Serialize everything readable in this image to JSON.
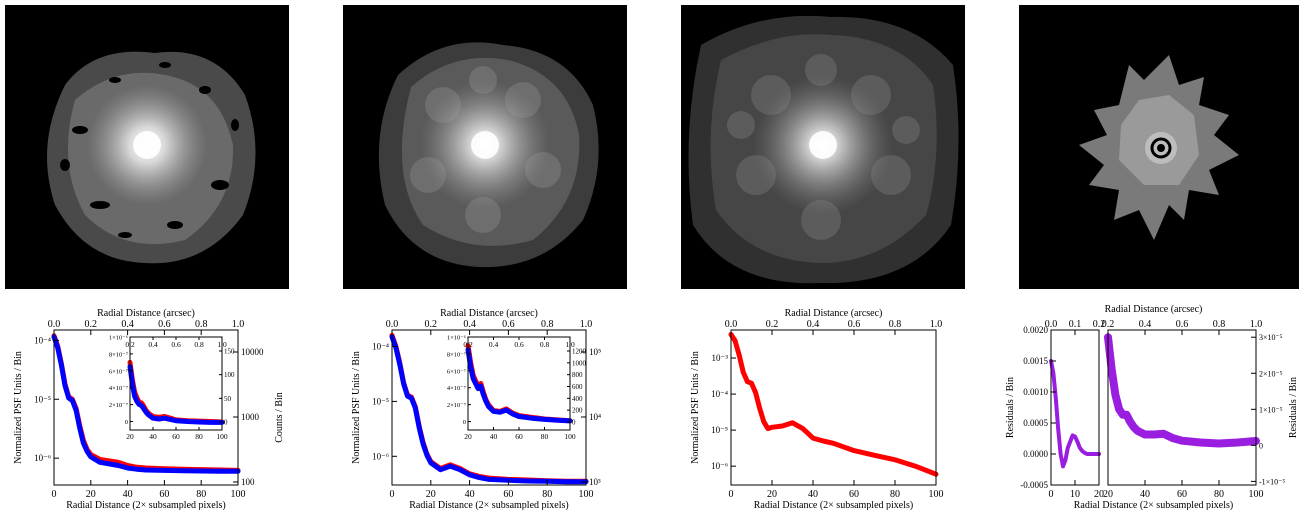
{
  "chart_data": [
    {
      "type": "line",
      "title": "",
      "xlabel": "Radial Distance (2× subsampled pixels)",
      "x2label": "Radial Distance (arcsec)",
      "ylabel": "Normalized PSF Units / Bin",
      "y2label": "Counts / Bin",
      "xlim": [
        0,
        100
      ],
      "x2lim": [
        0,
        1.0
      ],
      "ylim": [
        3.5e-07,
        0.00015
      ],
      "yscale": "log",
      "xticks": [
        "0",
        "20",
        "40",
        "60",
        "80",
        "100"
      ],
      "x2ticks": [
        "0.0",
        "0.2",
        "0.4",
        "0.6",
        "0.8",
        "1.0"
      ],
      "yticks": [
        "10⁻⁴",
        "10⁻⁵",
        "10⁻⁶"
      ],
      "y2ticks": [
        "10000",
        "1000",
        "100"
      ],
      "series": [
        {
          "color": "#ff0000",
          "x": [
            0,
            2,
            4,
            6,
            8,
            10,
            12,
            14,
            16,
            18,
            20,
            25,
            30,
            35,
            40,
            45,
            50,
            60,
            70,
            80,
            90,
            100
          ],
          "y": [
            0.00012,
            8e-05,
            4e-05,
            1.8e-05,
            1.1e-05,
            1e-05,
            7e-06,
            3.5e-06,
            2e-06,
            1.4e-06,
            1.15e-06,
            9.5e-07,
            9e-07,
            8.5e-07,
            7.5e-07,
            7e-07,
            6.8e-07,
            6.6e-07,
            6.5e-07,
            6.4e-07,
            6.3e-07,
            6.2e-07
          ]
        },
        {
          "color": "#0000ff",
          "x": [
            0,
            2,
            4,
            6,
            8,
            10,
            12,
            14,
            16,
            18,
            20,
            25,
            30,
            35,
            40,
            45,
            50,
            60,
            70,
            80,
            90,
            100
          ],
          "y": [
            0.000115,
            7.5e-05,
            3.8e-05,
            1.7e-05,
            1.05e-05,
            9.5e-06,
            6.5e-06,
            3.2e-06,
            1.8e-06,
            1.3e-06,
            1.05e-06,
            8.5e-07,
            8e-07,
            7.5e-07,
            6.8e-07,
            6.5e-07,
            6.3e-07,
            6.2e-07,
            6.1e-07,
            6.05e-07,
            6e-07,
            6e-07
          ]
        }
      ],
      "inset": {
        "xlim": [
          20,
          100
        ],
        "x2lim": [
          0.2,
          1.0
        ],
        "ylim": [
          -1e-07,
          1e-06
        ],
        "xticks": [
          "20",
          "40",
          "60",
          "80",
          "100"
        ],
        "x2ticks": [
          "0.2",
          "0.4",
          "0.6",
          "0.8",
          "1.0"
        ],
        "yticks": [
          "0",
          "2×10⁻⁷",
          "4×10⁻⁷",
          "6×10⁻⁷",
          "8×10⁻⁷",
          "1×10⁻⁶"
        ],
        "y2ticks": [
          "0",
          "50",
          "100",
          "150"
        ],
        "series": [
          {
            "color": "#ff0000",
            "x": [
              20,
              22,
              24,
              26,
              28,
              30,
              32,
              34,
              36,
              40,
              45,
              50,
              55,
              60,
              70,
              80,
              90,
              100
            ],
            "y": [
              7e-07,
              5e-07,
              3.5e-07,
              2.8e-07,
              2.3e-07,
              2.2e-07,
              1.8e-07,
              1.3e-07,
              1e-07,
              6e-08,
              5e-08,
              6e-08,
              4e-08,
              2e-08,
              1e-08,
              5e-09,
              0,
              -5e-09
            ]
          },
          {
            "color": "#0000ff",
            "x": [
              20,
              22,
              24,
              26,
              28,
              30,
              32,
              34,
              36,
              40,
              45,
              50,
              55,
              60,
              70,
              80,
              90,
              100
            ],
            "y": [
              6.5e-07,
              4.5e-07,
              3e-07,
              2.4e-07,
              2e-07,
              1.9e-07,
              1.5e-07,
              1.1e-07,
              8e-08,
              4e-08,
              3e-08,
              4e-08,
              2.5e-08,
              1e-08,
              0,
              -5e-09,
              -1e-08,
              -1e-08
            ]
          }
        ]
      }
    },
    {
      "type": "line",
      "title": "",
      "xlabel": "Radial Distance (2× subsampled pixels)",
      "x2label": "Radial Distance (arcsec)",
      "ylabel": "Normalized PSF Units / Bin",
      "y2label": "",
      "xlim": [
        0,
        100
      ],
      "x2lim": [
        0,
        1.0
      ],
      "ylim": [
        3e-07,
        0.0002
      ],
      "yscale": "log",
      "xticks": [
        "0",
        "20",
        "40",
        "60",
        "80",
        "100"
      ],
      "x2ticks": [
        "0.0",
        "0.2",
        "0.4",
        "0.6",
        "0.8",
        "1.0"
      ],
      "yticks": [
        "10⁻⁴",
        "10⁻⁵",
        "10⁻⁶"
      ],
      "y2ticks": [
        "10⁵",
        "10⁴",
        "10³"
      ],
      "series": [
        {
          "color": "#ff0000",
          "x": [
            0,
            2,
            4,
            6,
            8,
            10,
            12,
            14,
            16,
            18,
            20,
            25,
            30,
            35,
            40,
            45,
            50,
            60,
            70,
            80,
            90,
            100
          ],
          "y": [
            0.00016,
            0.0001,
            5e-05,
            2.2e-05,
            1.3e-05,
            1.2e-05,
            8e-06,
            3.5e-06,
            1.8e-06,
            1.1e-06,
            8e-07,
            6e-07,
            7e-07,
            6e-07,
            4.8e-07,
            4.3e-07,
            4e-07,
            3.8e-07,
            3.7e-07,
            3.6e-07,
            3.5e-07,
            3.5e-07
          ]
        },
        {
          "color": "#0000ff",
          "x": [
            0,
            2,
            4,
            6,
            8,
            10,
            12,
            14,
            16,
            18,
            20,
            25,
            30,
            35,
            40,
            45,
            50,
            60,
            70,
            80,
            90,
            100
          ],
          "y": [
            0.00015,
            9.5e-05,
            4.7e-05,
            2.1e-05,
            1.25e-05,
            1.15e-05,
            7.6e-06,
            3.3e-06,
            1.7e-06,
            1.05e-06,
            7.6e-07,
            5.7e-07,
            6.6e-07,
            5.7e-07,
            4.6e-07,
            4.1e-07,
            3.8e-07,
            3.65e-07,
            3.55e-07,
            3.5e-07,
            3.45e-07,
            3.45e-07
          ]
        }
      ],
      "inset": {
        "xlim": [
          20,
          100
        ],
        "x2lim": [
          0.2,
          1.0
        ],
        "ylim": [
          -1e-07,
          1e-06
        ],
        "xticks": [
          "20",
          "40",
          "60",
          "80",
          "100"
        ],
        "x2ticks": [
          "0.2",
          "0.4",
          "0.6",
          "0.8",
          "1.0"
        ],
        "yticks": [
          "0",
          "2×10⁻⁷",
          "4×10⁻⁷",
          "6×10⁻⁷",
          "8×10⁻⁷",
          "1×10⁻⁶"
        ],
        "y2ticks": [
          "0",
          "200",
          "400",
          "600",
          "800",
          "1000",
          "1200"
        ],
        "series": [
          {
            "color": "#ff0000",
            "x": [
              20,
              22,
              24,
              26,
              28,
              30,
              32,
              34,
              36,
              40,
              45,
              50,
              55,
              60,
              70,
              80,
              90,
              100
            ],
            "y": [
              9e-07,
              7e-07,
              5.5e-07,
              4.8e-07,
              4.2e-07,
              4.5e-07,
              3.5e-07,
              2.6e-07,
              2e-07,
              1.3e-07,
              1.2e-07,
              1.5e-07,
              1e-07,
              7e-08,
              5e-08,
              3e-08,
              2e-08,
              1e-08
            ]
          },
          {
            "color": "#0000ff",
            "x": [
              20,
              22,
              24,
              26,
              28,
              30,
              32,
              34,
              36,
              40,
              45,
              50,
              55,
              60,
              70,
              80,
              90,
              100
            ],
            "y": [
              8.5e-07,
              6.5e-07,
              5.1e-07,
              4.5e-07,
              3.9e-07,
              4.2e-07,
              3.2e-07,
              2.4e-07,
              1.8e-07,
              1.2e-07,
              1.1e-07,
              1.35e-07,
              9e-08,
              6e-08,
              4e-08,
              2.5e-08,
              1.5e-08,
              8e-09
            ]
          }
        ]
      }
    },
    {
      "type": "line",
      "title": "",
      "xlabel": "Radial Distance (2× subsampled pixels)",
      "x2label": "Radial Distance (arcsec)",
      "ylabel": "Normalized PSF Units / Bin",
      "y2label": "",
      "xlim": [
        0,
        100
      ],
      "x2lim": [
        0,
        1.0
      ],
      "ylim": [
        3e-07,
        0.006
      ],
      "yscale": "log",
      "xticks": [
        "0",
        "20",
        "40",
        "60",
        "80",
        "100"
      ],
      "x2ticks": [
        "0.0",
        "0.2",
        "0.4",
        "0.6",
        "0.8",
        "1.0"
      ],
      "yticks": [
        "10⁻³",
        "10⁻⁴",
        "10⁻⁵",
        "10⁻⁶"
      ],
      "y2ticks": [],
      "series": [
        {
          "color": "#ff0000",
          "x": [
            0,
            2,
            4,
            6,
            8,
            10,
            12,
            14,
            16,
            18,
            20,
            25,
            30,
            35,
            40,
            45,
            50,
            60,
            70,
            80,
            90,
            100
          ],
          "y": [
            0.0045,
            0.003,
            0.0012,
            0.0004,
            0.00022,
            0.0002,
            0.00011,
            4e-05,
            1.7e-05,
            1.1e-05,
            1.2e-05,
            1.3e-05,
            1.6e-05,
            1.1e-05,
            6e-06,
            5e-06,
            4.3e-06,
            2.7e-06,
            2e-06,
            1.5e-06,
            1e-06,
            6e-07
          ]
        }
      ],
      "inset": null
    },
    {
      "type": "line",
      "title": "",
      "xlabel": "Radial Distance (2× subsampled pixels)",
      "x2label": "Radial Distance (arcsec)",
      "ylabel": "Residuals / Bin",
      "y2label": "Residuals / Bin",
      "xlim": [
        0,
        20
      ],
      "x2lim": [
        0,
        0.2
      ],
      "ylim": [
        -0.0005,
        0.002
      ],
      "yscale": "linear",
      "xticks": [
        "0",
        "10",
        "20"
      ],
      "x2ticks": [
        "0.0",
        "0.1",
        "0.2"
      ],
      "yticks": [
        "-0.0005",
        "0.0000",
        "0.0005",
        "0.0010",
        "0.0015",
        "0.0020"
      ],
      "y2ticks": [],
      "series": [
        {
          "color": "#9a1ee0",
          "x": [
            0,
            1,
            2,
            3,
            4,
            5,
            6,
            7,
            8,
            9,
            10,
            11,
            12,
            13,
            14,
            15,
            16,
            17,
            18,
            19,
            20
          ],
          "y": [
            0.0015,
            0.0013,
            0.0009,
            0.0004,
            0.0,
            -0.0002,
            -0.0001,
            0.0001,
            0.0002,
            0.0003,
            0.00028,
            0.0002,
            0.0001,
            5e-05,
            2e-05,
            0.0,
            0.0,
            0.0,
            0.0,
            0.0,
            0.0
          ]
        }
      ],
      "panel2": {
        "xlim": [
          20,
          100
        ],
        "x2lim": [
          0.2,
          1.0
        ],
        "ylim": [
          -1.1e-05,
          3.2e-05
        ],
        "xticks": [
          "20",
          "40",
          "60",
          "80",
          "100"
        ],
        "x2ticks": [
          "0.2",
          "0.4",
          "0.6",
          "0.8",
          "1.0"
        ],
        "y2ticks": [
          "-1×10⁻⁵",
          "0",
          "1×10⁻⁵",
          "2×10⁻⁵",
          "3×10⁻⁵"
        ],
        "series": [
          {
            "color": "#9a1ee0",
            "x": [
              20,
              22,
              24,
              26,
              28,
              30,
              32,
              34,
              36,
              40,
              45,
              50,
              55,
              60,
              70,
              80,
              90,
              100
            ],
            "y": [
              3e-05,
              2.1e-05,
              1.4e-05,
              1e-05,
              8.5e-06,
              8.5e-06,
              6.5e-06,
              5e-06,
              4e-06,
              3e-06,
              3e-06,
              3.2e-06,
              2e-06,
              1.3e-06,
              8e-07,
              5e-07,
              8e-07,
              1.2e-06
            ]
          }
        ]
      }
    }
  ]
}
